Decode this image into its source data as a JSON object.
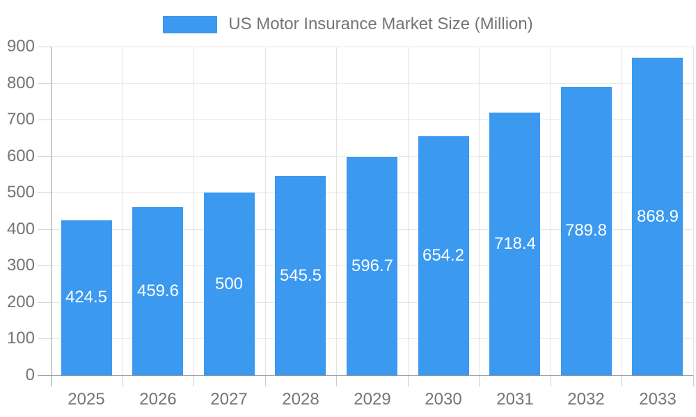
{
  "legend": {
    "label": "US Motor Insurance Market Size (Million)"
  },
  "colors": {
    "bar": "#3B99F0",
    "axis": "#999999",
    "tick": "#cccccc",
    "grid": "#e3e3e3",
    "axis_text": "#757575",
    "value_text": "#ffffff",
    "background": "#ffffff"
  },
  "chart_data": {
    "type": "bar",
    "title": "US Motor Insurance Market Size (Million)",
    "categories": [
      "2025",
      "2026",
      "2027",
      "2028",
      "2029",
      "2030",
      "2031",
      "2032",
      "2033"
    ],
    "values": [
      424.5,
      459.6,
      500,
      545.5,
      596.7,
      654.2,
      718.4,
      789.8,
      868.9
    ],
    "value_labels": [
      "424.5",
      "459.6",
      "500",
      "545.5",
      "596.7",
      "654.2",
      "718.4",
      "789.8",
      "868.9"
    ],
    "xlabel": "",
    "ylabel": "",
    "ylim": [
      0,
      900
    ],
    "y_ticks": [
      0,
      100,
      200,
      300,
      400,
      500,
      600,
      700,
      800,
      900
    ],
    "grid": true,
    "legend_position": "top",
    "value_label_position": "inside-center"
  }
}
